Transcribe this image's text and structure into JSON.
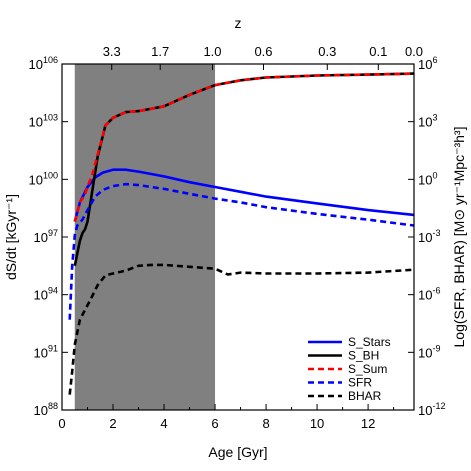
{
  "chart_data": {
    "type": "line",
    "title": "",
    "xlabel": "Age [Gyr]",
    "ylabel_left": "dS/dt [kGyr⁻¹]",
    "ylabel_right": "Log(SFR, BHAR) [M⊙ yr⁻¹Mpc⁻³h³]",
    "top_axis_label": "z",
    "xlim": [
      0,
      13.8
    ],
    "ylim_left_log10": [
      88,
      106
    ],
    "ylim_right_log10": [
      -12,
      6
    ],
    "x_ticks": [
      0,
      2,
      4,
      6,
      8,
      10,
      12
    ],
    "y_left_ticks": [
      {
        "exp": 88,
        "label": "10^88"
      },
      {
        "exp": 91,
        "label": "10^91"
      },
      {
        "exp": 94,
        "label": "10^94"
      },
      {
        "exp": 97,
        "label": "10^97"
      },
      {
        "exp": 100,
        "label": "10^100"
      },
      {
        "exp": 103,
        "label": "10^103"
      },
      {
        "exp": 106,
        "label": "10^106"
      }
    ],
    "y_right_ticks": [
      {
        "exp": -12,
        "label": "10^-12"
      },
      {
        "exp": -9,
        "label": "10^-9"
      },
      {
        "exp": -6,
        "label": "10^-6"
      },
      {
        "exp": -3,
        "label": "10^-3"
      },
      {
        "exp": 0,
        "label": "10^0"
      },
      {
        "exp": 3,
        "label": "10^3"
      },
      {
        "exp": 6,
        "label": "10^6"
      }
    ],
    "top_ticks": [
      {
        "label": "3.3",
        "age": 1.95
      },
      {
        "label": "1.7",
        "age": 3.85
      },
      {
        "label": "1.0",
        "age": 5.9
      },
      {
        "label": "0.6",
        "age": 7.9
      },
      {
        "label": "0.3",
        "age": 10.4
      },
      {
        "label": "0.1",
        "age": 12.4
      },
      {
        "label": "0.0",
        "age": 13.8
      }
    ],
    "shaded_region": {
      "x": [
        0.5,
        6.0
      ],
      "color": "#808080"
    },
    "legend_position": "lower-right",
    "series": [
      {
        "name": "S_Stars",
        "axis": "left",
        "color": "#0000ff",
        "dash": "solid",
        "x": [
          0.5,
          0.7,
          1.0,
          1.3,
          1.6,
          2.0,
          2.5,
          3.0,
          4.0,
          5.0,
          6.0,
          7.0,
          8.0,
          10.0,
          12.0,
          13.8
        ],
        "y_log10": [
          97.8,
          98.8,
          99.6,
          100.1,
          100.35,
          100.5,
          100.5,
          100.4,
          100.15,
          99.85,
          99.6,
          99.35,
          99.1,
          98.75,
          98.4,
          98.15
        ]
      },
      {
        "name": "S_BH",
        "axis": "left",
        "color": "#000000",
        "dash": "solid",
        "x": [
          0.5,
          0.7,
          0.8,
          0.9,
          1.0,
          1.2,
          1.4,
          1.7,
          2.0,
          2.5,
          3.0,
          4.0,
          5.0,
          6.0,
          7.0,
          8.0,
          10.0,
          12.0,
          13.8
        ],
        "y_log10": [
          95.5,
          96.8,
          97.2,
          97.4,
          97.8,
          99.5,
          101.2,
          102.8,
          103.2,
          103.5,
          103.55,
          103.8,
          104.4,
          104.9,
          105.15,
          105.3,
          105.4,
          105.45,
          105.5
        ]
      },
      {
        "name": "S_Sum",
        "axis": "left",
        "color": "#ff0000",
        "dash": "dashed",
        "x": [
          0.5,
          0.7,
          0.8,
          0.9,
          1.0,
          1.2,
          1.4,
          1.7,
          2.0,
          2.5,
          3.0,
          4.0,
          5.0,
          6.0,
          7.0,
          8.0,
          10.0,
          12.0,
          13.8
        ],
        "y_log10": [
          97.8,
          98.8,
          99.0,
          99.2,
          99.6,
          100.3,
          101.3,
          102.8,
          103.2,
          103.5,
          103.55,
          103.8,
          104.4,
          104.9,
          105.15,
          105.3,
          105.4,
          105.45,
          105.5
        ]
      },
      {
        "name": "SFR",
        "axis": "right",
        "color": "#0000ff",
        "dash": "dashed",
        "x": [
          0.3,
          0.4,
          0.5,
          0.6,
          0.8,
          1.0,
          1.3,
          1.6,
          2.0,
          2.5,
          3.0,
          4.0,
          5.0,
          6.0,
          7.0,
          8.0,
          10.0,
          12.0,
          13.8
        ],
        "y_log10": [
          -7.3,
          -4.5,
          -2.9,
          -2.4,
          -2.1,
          -1.6,
          -0.9,
          -0.55,
          -0.35,
          -0.25,
          -0.3,
          -0.5,
          -0.75,
          -1.0,
          -1.2,
          -1.45,
          -1.8,
          -2.1,
          -2.4
        ]
      },
      {
        "name": "BHAR",
        "axis": "right",
        "color": "#000000",
        "dash": "dashed",
        "x": [
          0.3,
          0.4,
          0.5,
          0.7,
          0.9,
          1.1,
          1.4,
          1.7,
          2.0,
          2.5,
          3.0,
          3.5,
          4.0,
          5.0,
          6.0,
          6.5,
          7.0,
          8.0,
          10.0,
          12.0,
          13.8
        ],
        "y_log10": [
          -11.2,
          -10.0,
          -8.6,
          -7.3,
          -6.8,
          -6.3,
          -5.5,
          -5.0,
          -4.9,
          -4.75,
          -4.5,
          -4.45,
          -4.45,
          -4.55,
          -4.65,
          -4.95,
          -4.85,
          -4.9,
          -4.9,
          -4.85,
          -4.7
        ]
      }
    ]
  }
}
